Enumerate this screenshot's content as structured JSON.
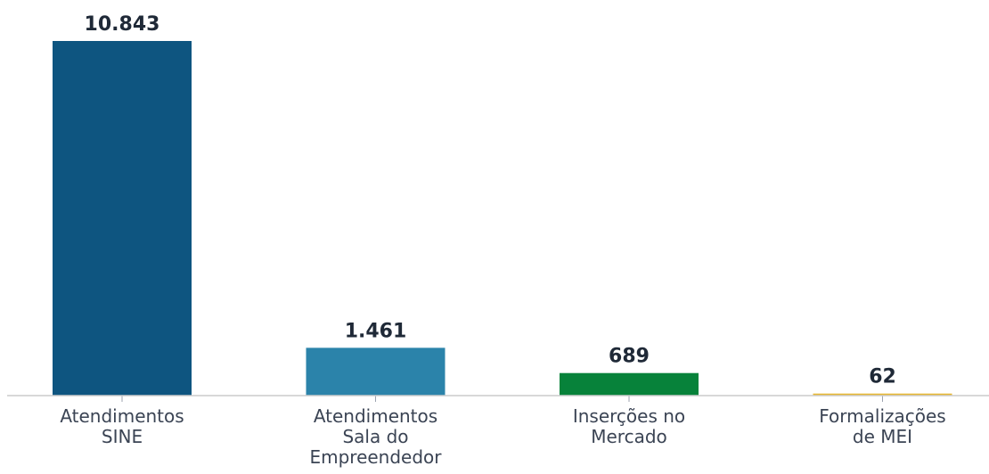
{
  "chart_data": {
    "type": "bar",
    "categories": [
      "Atendimentos\nSINE",
      "Atendimentos\nSala do\nEmpreendedor",
      "Inserções no\nMercado",
      "Formalizações\nde MEI"
    ],
    "values": [
      10843,
      1461,
      689,
      62
    ],
    "value_labels": [
      "10.843",
      "1.461",
      "689",
      "62"
    ],
    "colors": [
      "#0e5580",
      "#2b83aa",
      "#07823a",
      "#e8b730"
    ]
  }
}
